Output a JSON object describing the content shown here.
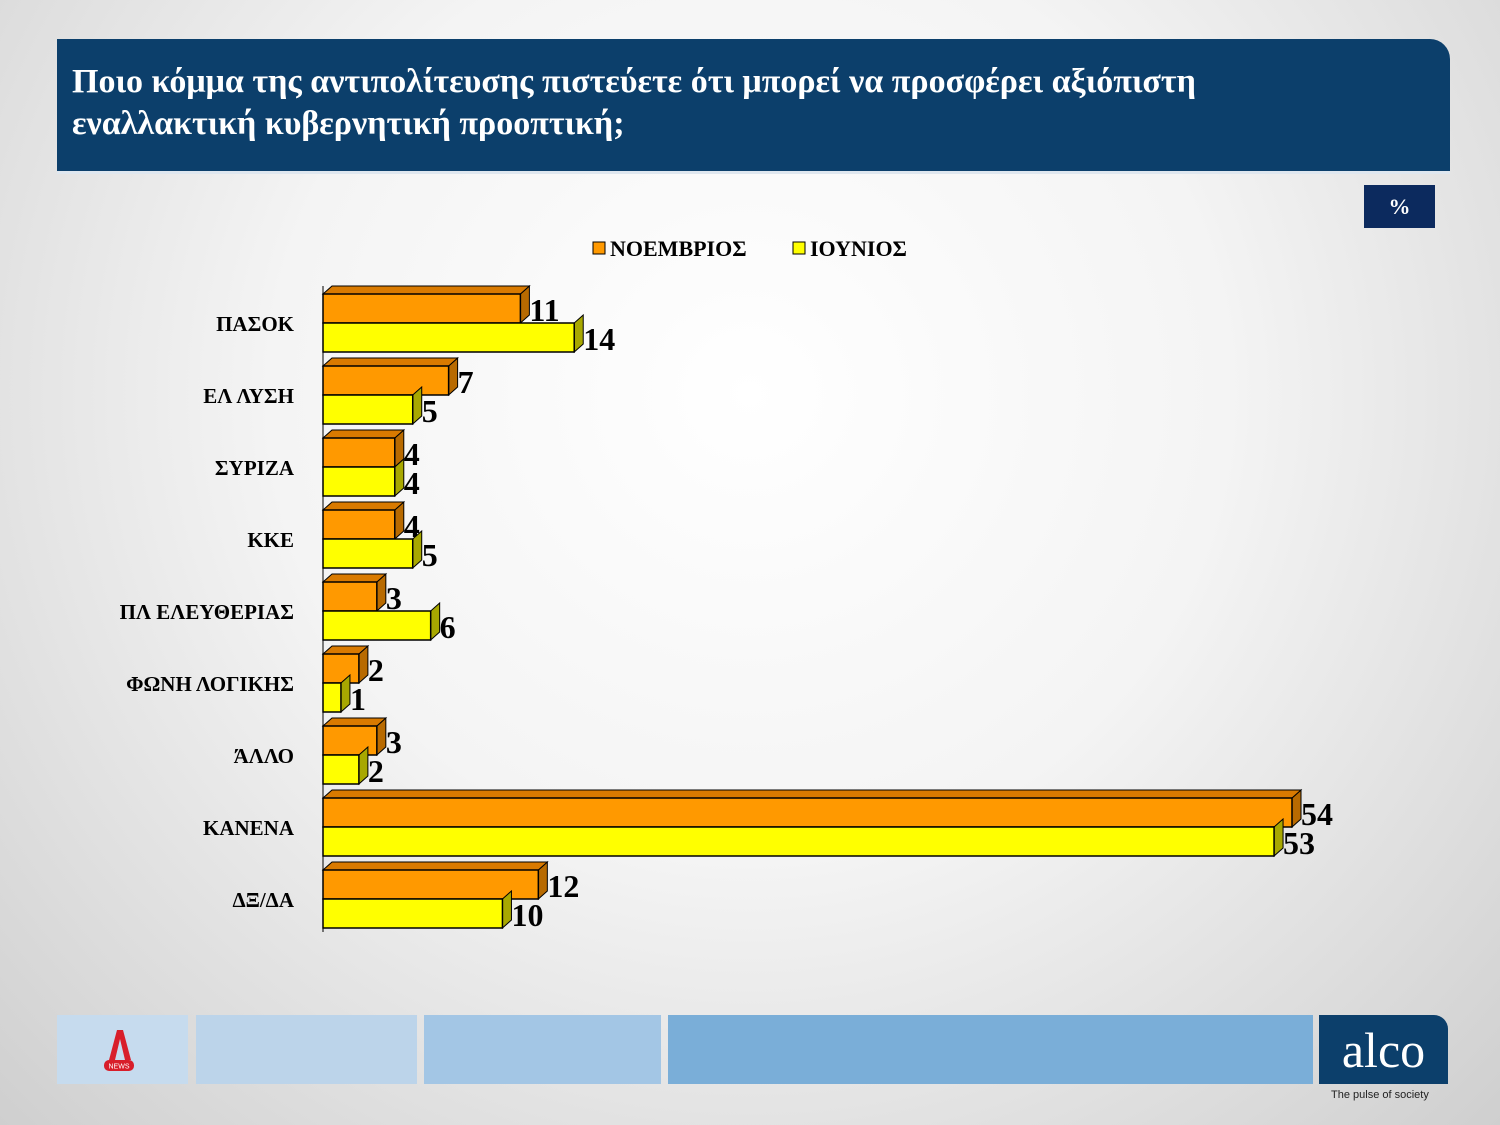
{
  "header": {
    "title": "Ποιο κόμμα της αντιπολίτευσης πιστεύετε ότι μπορεί να προσφέρει αξιόπιστη εναλλακτική κυβερνητική προοπτική;"
  },
  "unit_badge": "%",
  "chart_data": {
    "type": "bar",
    "orientation": "horizontal",
    "style": "3d",
    "categories": [
      "ΠΑΣΟΚ",
      "ΕΛ ΛΥΣΗ",
      "ΣΥΡΙΖΑ",
      "ΚΚΕ",
      "ΠΛ ΕΛΕΥΘΕΡΙΑΣ",
      "ΦΩΝΗ ΛΟΓΙΚΗΣ",
      "ΆΛΛΟ",
      "ΚΑΝΕΝΑ",
      "ΔΞ/ΔΑ"
    ],
    "series": [
      {
        "name": "ΝΟΕΜΒΡΙΟΣ",
        "color": "#ff9900",
        "values": [
          11,
          7,
          4,
          4,
          3,
          2,
          3,
          54,
          12
        ]
      },
      {
        "name": "ΙΟΥΝΙΟΣ",
        "color": "#ffff00",
        "values": [
          14,
          5,
          4,
          5,
          6,
          1,
          2,
          53,
          10
        ]
      }
    ],
    "legend_placement": "top",
    "grid": false,
    "xlim": [
      0,
      54
    ]
  },
  "footer": {
    "brand": "alco",
    "tagline": "The pulse of society",
    "left_logo": "ALPHA NEWS"
  }
}
